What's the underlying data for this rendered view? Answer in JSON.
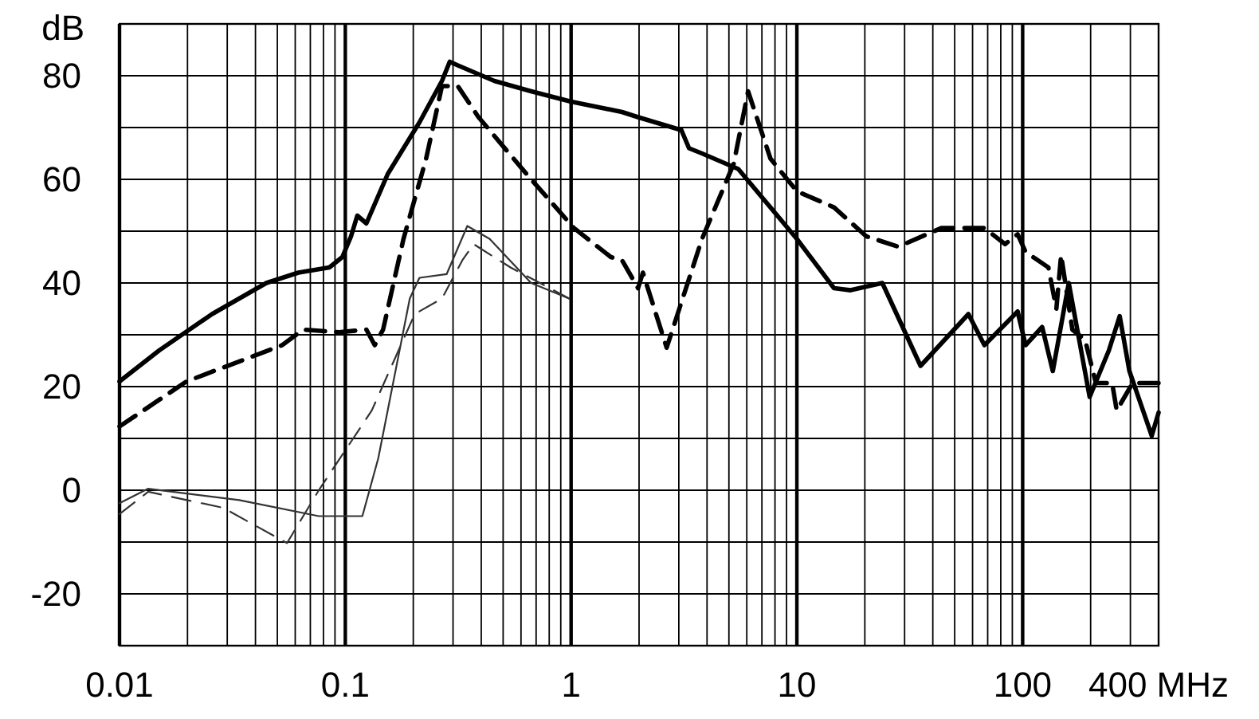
{
  "chart_data": {
    "type": "line",
    "ylabel": "dB",
    "log": "x",
    "grid": true,
    "xlim": [
      0.01,
      400
    ],
    "ylim": [
      -30,
      90
    ],
    "xticks": [
      0.01,
      {
        "value": 0.02,
        "label": null
      },
      {
        "value": 0.03,
        "label": null
      },
      {
        "value": 0.04,
        "label": null
      },
      {
        "value": 0.05,
        "label": null
      },
      {
        "value": 0.06,
        "label": null
      },
      {
        "value": 0.07,
        "label": null
      },
      {
        "value": 0.08,
        "label": null
      },
      {
        "value": 0.09,
        "label": null
      },
      0.1,
      {
        "value": 0.2,
        "label": null
      },
      {
        "value": 0.3,
        "label": null
      },
      {
        "value": 0.4,
        "label": null
      },
      {
        "value": 0.5,
        "label": null
      },
      {
        "value": 0.6,
        "label": null
      },
      {
        "value": 0.7,
        "label": null
      },
      {
        "value": 0.8,
        "label": null
      },
      {
        "value": 0.9,
        "label": null
      },
      1,
      {
        "value": 2,
        "label": null
      },
      {
        "value": 3,
        "label": null
      },
      {
        "value": 4,
        "label": null
      },
      {
        "value": 5,
        "label": null
      },
      {
        "value": 6,
        "label": null
      },
      {
        "value": 7,
        "label": null
      },
      {
        "value": 8,
        "label": null
      },
      {
        "value": 9,
        "label": null
      },
      10,
      {
        "value": 20,
        "label": null
      },
      {
        "value": 30,
        "label": null
      },
      {
        "value": 40,
        "label": null
      },
      {
        "value": 50,
        "label": null
      },
      {
        "value": 60,
        "label": null
      },
      {
        "value": 70,
        "label": null
      },
      {
        "value": 80,
        "label": null
      },
      {
        "value": 90,
        "label": null
      },
      100,
      {
        "value": 200,
        "label": null
      },
      {
        "value": 300,
        "label": null
      },
      {
        "value": 400,
        "label": "400 MHz"
      }
    ],
    "yticks": [
      {
        "value": -30,
        "label": null
      },
      -20,
      {
        "value": -10,
        "label": null
      },
      0,
      {
        "value": 10,
        "label": null
      },
      20,
      {
        "value": 30,
        "label": null
      },
      40,
      {
        "value": 50,
        "label": null
      },
      60,
      {
        "value": 70,
        "label": null
      },
      80,
      {
        "value": 90,
        "label": null
      }
    ],
    "series": [
      {
        "color": "#000000",
        "line_style": "solid",
        "x": [
          0.01,
          0.015,
          0.0257,
          0.0447,
          0.062,
          0.085,
          0.097,
          0.106,
          0.113,
          0.124,
          0.154,
          0.213,
          0.268,
          0.29,
          0.315,
          0.457,
          0.665,
          1,
          1.68,
          1.98,
          3.08,
          3.33,
          3.8,
          5.5,
          10,
          14.6,
          17.3,
          23.9,
          35.3,
          57.5,
          67.7,
          95,
          103,
          122,
          136,
          160,
          198,
          241,
          269,
          297,
          373,
          400
        ],
        "values": [
          21,
          27,
          34,
          40,
          42,
          43,
          45,
          49,
          53,
          51.5,
          61,
          71,
          79,
          82.7,
          82,
          79,
          77,
          75,
          73,
          72,
          69.5,
          66,
          65,
          62,
          48.5,
          39,
          38.6,
          40,
          24,
          34,
          28,
          34.5,
          28,
          31.5,
          23,
          40,
          18,
          27,
          33.6,
          23,
          10.5,
          15
        ]
      },
      {
        "color": "#000000",
        "line_style": "dashed",
        "x": [
          0.01,
          0.0198,
          0.0525,
          0.065,
          0.094,
          0.124,
          0.135,
          0.147,
          0.181,
          0.228,
          0.268,
          0.315,
          0.389,
          0.665,
          1.03,
          1.5,
          1.68,
          1.98,
          2.08,
          2.65,
          3.8,
          5.25,
          6.08,
          7.64,
          10,
          14.6,
          20.3,
          28.1,
          43.6,
          67.7,
          83.6,
          95,
          103,
          130,
          141,
          148,
          166,
          189,
          211,
          249,
          261,
          307,
          400
        ],
        "values": [
          12.3,
          21,
          28,
          31,
          30.5,
          31,
          28,
          31,
          48.5,
          64,
          78,
          78,
          72,
          60,
          50.6,
          45,
          44.4,
          39,
          42,
          27.5,
          48.5,
          63,
          77,
          64,
          57.7,
          54.6,
          49,
          47,
          50.6,
          50.6,
          47.5,
          49.4,
          46,
          43,
          35,
          45.4,
          31,
          29,
          20.7,
          20.7,
          15.4,
          20.7,
          20.7
        ]
      },
      {
        "color": "#333333",
        "line_style": "solid",
        "x": [
          0.01,
          0.0134,
          0.0339,
          0.0763,
          0.119,
          0.14,
          0.193,
          0.213,
          0.281,
          0.347,
          0.436,
          0.665,
          0.98
        ],
        "values": [
          -2.5,
          0.3,
          -1.9,
          -5,
          -5,
          6.2,
          37,
          41,
          41.7,
          51,
          48.5,
          40,
          37
        ]
      },
      {
        "color": "#333333",
        "line_style": "dashed",
        "x": [
          0.01,
          0.0134,
          0.0288,
          0.0552,
          0.0763,
          0.131,
          0.203,
          0.268,
          0.33,
          0.37,
          0.539,
          0.98
        ],
        "values": [
          -4.6,
          -0.3,
          -3.4,
          -10.2,
          0,
          15.4,
          34,
          37,
          44.4,
          47.5,
          43,
          37
        ]
      }
    ]
  }
}
